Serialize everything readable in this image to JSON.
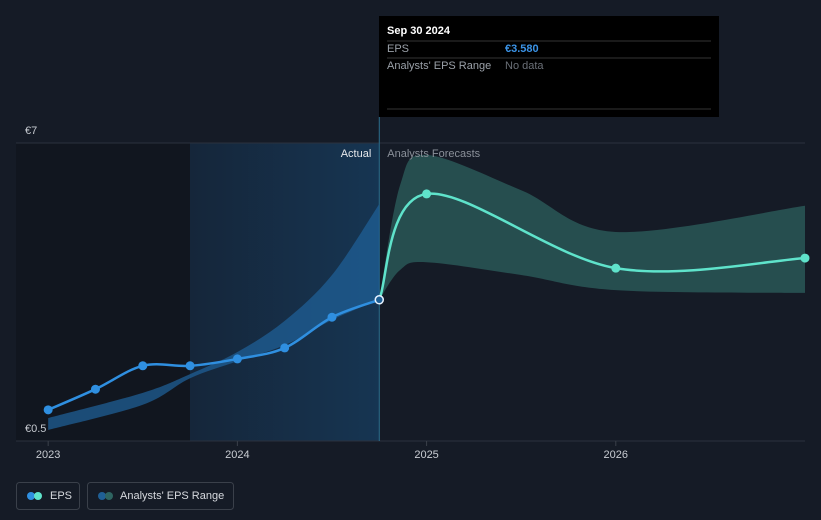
{
  "chart_data": {
    "type": "line",
    "ylim": [
      0.5,
      7
    ],
    "yticks": [
      {
        "value": 0.5,
        "label": "€0.5"
      },
      {
        "value": 7,
        "label": "€7"
      }
    ],
    "xlim": [
      2022.83,
      2027.0
    ],
    "xticks": [
      2023,
      2024,
      2025,
      2026
    ],
    "forecast_start": 2024.75,
    "annotations": {
      "actual": "Actual",
      "forecast": "Analysts Forecasts"
    },
    "series": [
      {
        "name": "EPS",
        "color": "#2f8fe0",
        "forecast_color": "#5fe3cb",
        "actual": {
          "x": [
            2023,
            2023.25,
            2023.5,
            2023.75,
            2024,
            2024.25,
            2024.5,
            2024.75
          ],
          "values": [
            1.18,
            1.63,
            2.14,
            2.14,
            2.29,
            2.53,
            3.2,
            3.58
          ]
        },
        "forecast": {
          "x": [
            2024.75,
            2025,
            2026,
            2027
          ],
          "values": [
            3.58,
            5.89,
            4.27,
            4.49
          ]
        }
      }
    ],
    "range": {
      "name": "Analysts' EPS Range",
      "color": "#1f5f95",
      "forecast_color": "#2e6461",
      "actual": {
        "x": [
          2023,
          2023.5,
          2023.75,
          2024,
          2024.25,
          2024.5,
          2024.75
        ],
        "low": [
          0.74,
          1.29,
          1.87,
          2.24,
          2.59,
          3.14,
          3.58
        ],
        "high": [
          1.0,
          1.55,
          1.96,
          2.44,
          3.12,
          4.12,
          5.67
        ]
      },
      "forecast": {
        "x": [
          2024.75,
          2024.86,
          2025,
          2025.5,
          2026,
          2027
        ],
        "low": [
          3.58,
          4.23,
          4.4,
          4.12,
          3.79,
          3.73
        ],
        "high": [
          3.58,
          6.08,
          6.74,
          5.97,
          5.06,
          5.63
        ]
      }
    },
    "tooltip": {
      "date": "Sep 30 2024",
      "rows": [
        {
          "label": "EPS",
          "value": "€3.580"
        },
        {
          "label": "Analysts' EPS Range",
          "value": "No data"
        }
      ]
    }
  }
}
